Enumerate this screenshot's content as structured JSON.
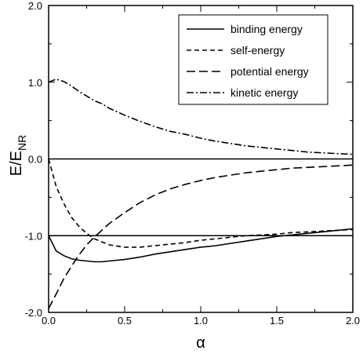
{
  "chart_data": {
    "type": "line",
    "xlabel": "α",
    "ylabel_main": "E/E",
    "ylabel_sub": "NR",
    "xlim": [
      0.0,
      2.0
    ],
    "ylim": [
      -2.0,
      2.0
    ],
    "xticks": [
      "0.0",
      "0.5",
      "1.0",
      "1.5",
      "2.0"
    ],
    "yticks": [
      "-2.0",
      "-1.0",
      "0.0",
      "1.0",
      "2.0"
    ],
    "xtick_values": [
      0.0,
      0.5,
      1.0,
      1.5,
      2.0
    ],
    "ytick_values": [
      -2.0,
      -1.0,
      0.0,
      1.0,
      2.0
    ],
    "grid": false,
    "legend_position": "top-right",
    "reference_lines": [
      0.0,
      -1.0
    ],
    "x": [
      0.0,
      0.05,
      0.1,
      0.15,
      0.2,
      0.25,
      0.3,
      0.35,
      0.4,
      0.5,
      0.6,
      0.7,
      0.8,
      0.9,
      1.0,
      1.1,
      1.2,
      1.3,
      1.4,
      1.5,
      1.6,
      1.7,
      1.8,
      1.9,
      2.0
    ],
    "series": [
      {
        "name": "binding energy",
        "dash": "solid",
        "values": [
          -1.0,
          -1.2,
          -1.26,
          -1.3,
          -1.32,
          -1.33,
          -1.34,
          -1.34,
          -1.33,
          -1.31,
          -1.28,
          -1.24,
          -1.21,
          -1.18,
          -1.15,
          -1.13,
          -1.1,
          -1.07,
          -1.04,
          -1.01,
          -0.99,
          -0.97,
          -0.95,
          -0.93,
          -0.91
        ]
      },
      {
        "name": "self-energy",
        "dash": "short",
        "values": [
          0.0,
          -0.36,
          -0.58,
          -0.76,
          -0.88,
          -0.97,
          -1.04,
          -1.08,
          -1.12,
          -1.15,
          -1.15,
          -1.13,
          -1.11,
          -1.09,
          -1.06,
          -1.04,
          -1.02,
          -1.0,
          -0.99,
          -0.98,
          -0.96,
          -0.95,
          -0.94,
          -0.93,
          -0.92
        ]
      },
      {
        "name": "potential energy",
        "dash": "long",
        "values": [
          -1.95,
          -1.76,
          -1.56,
          -1.4,
          -1.25,
          -1.12,
          -1.02,
          -0.93,
          -0.84,
          -0.7,
          -0.57,
          -0.47,
          -0.39,
          -0.33,
          -0.28,
          -0.24,
          -0.21,
          -0.18,
          -0.16,
          -0.14,
          -0.12,
          -0.11,
          -0.1,
          -0.09,
          -0.08
        ]
      },
      {
        "name": "kinetic energy",
        "dash": "dashdot",
        "values": [
          1.0,
          1.04,
          1.01,
          0.95,
          0.88,
          0.82,
          0.76,
          0.72,
          0.66,
          0.57,
          0.49,
          0.42,
          0.36,
          0.32,
          0.27,
          0.23,
          0.2,
          0.17,
          0.15,
          0.13,
          0.11,
          0.09,
          0.08,
          0.07,
          0.06
        ]
      }
    ]
  }
}
